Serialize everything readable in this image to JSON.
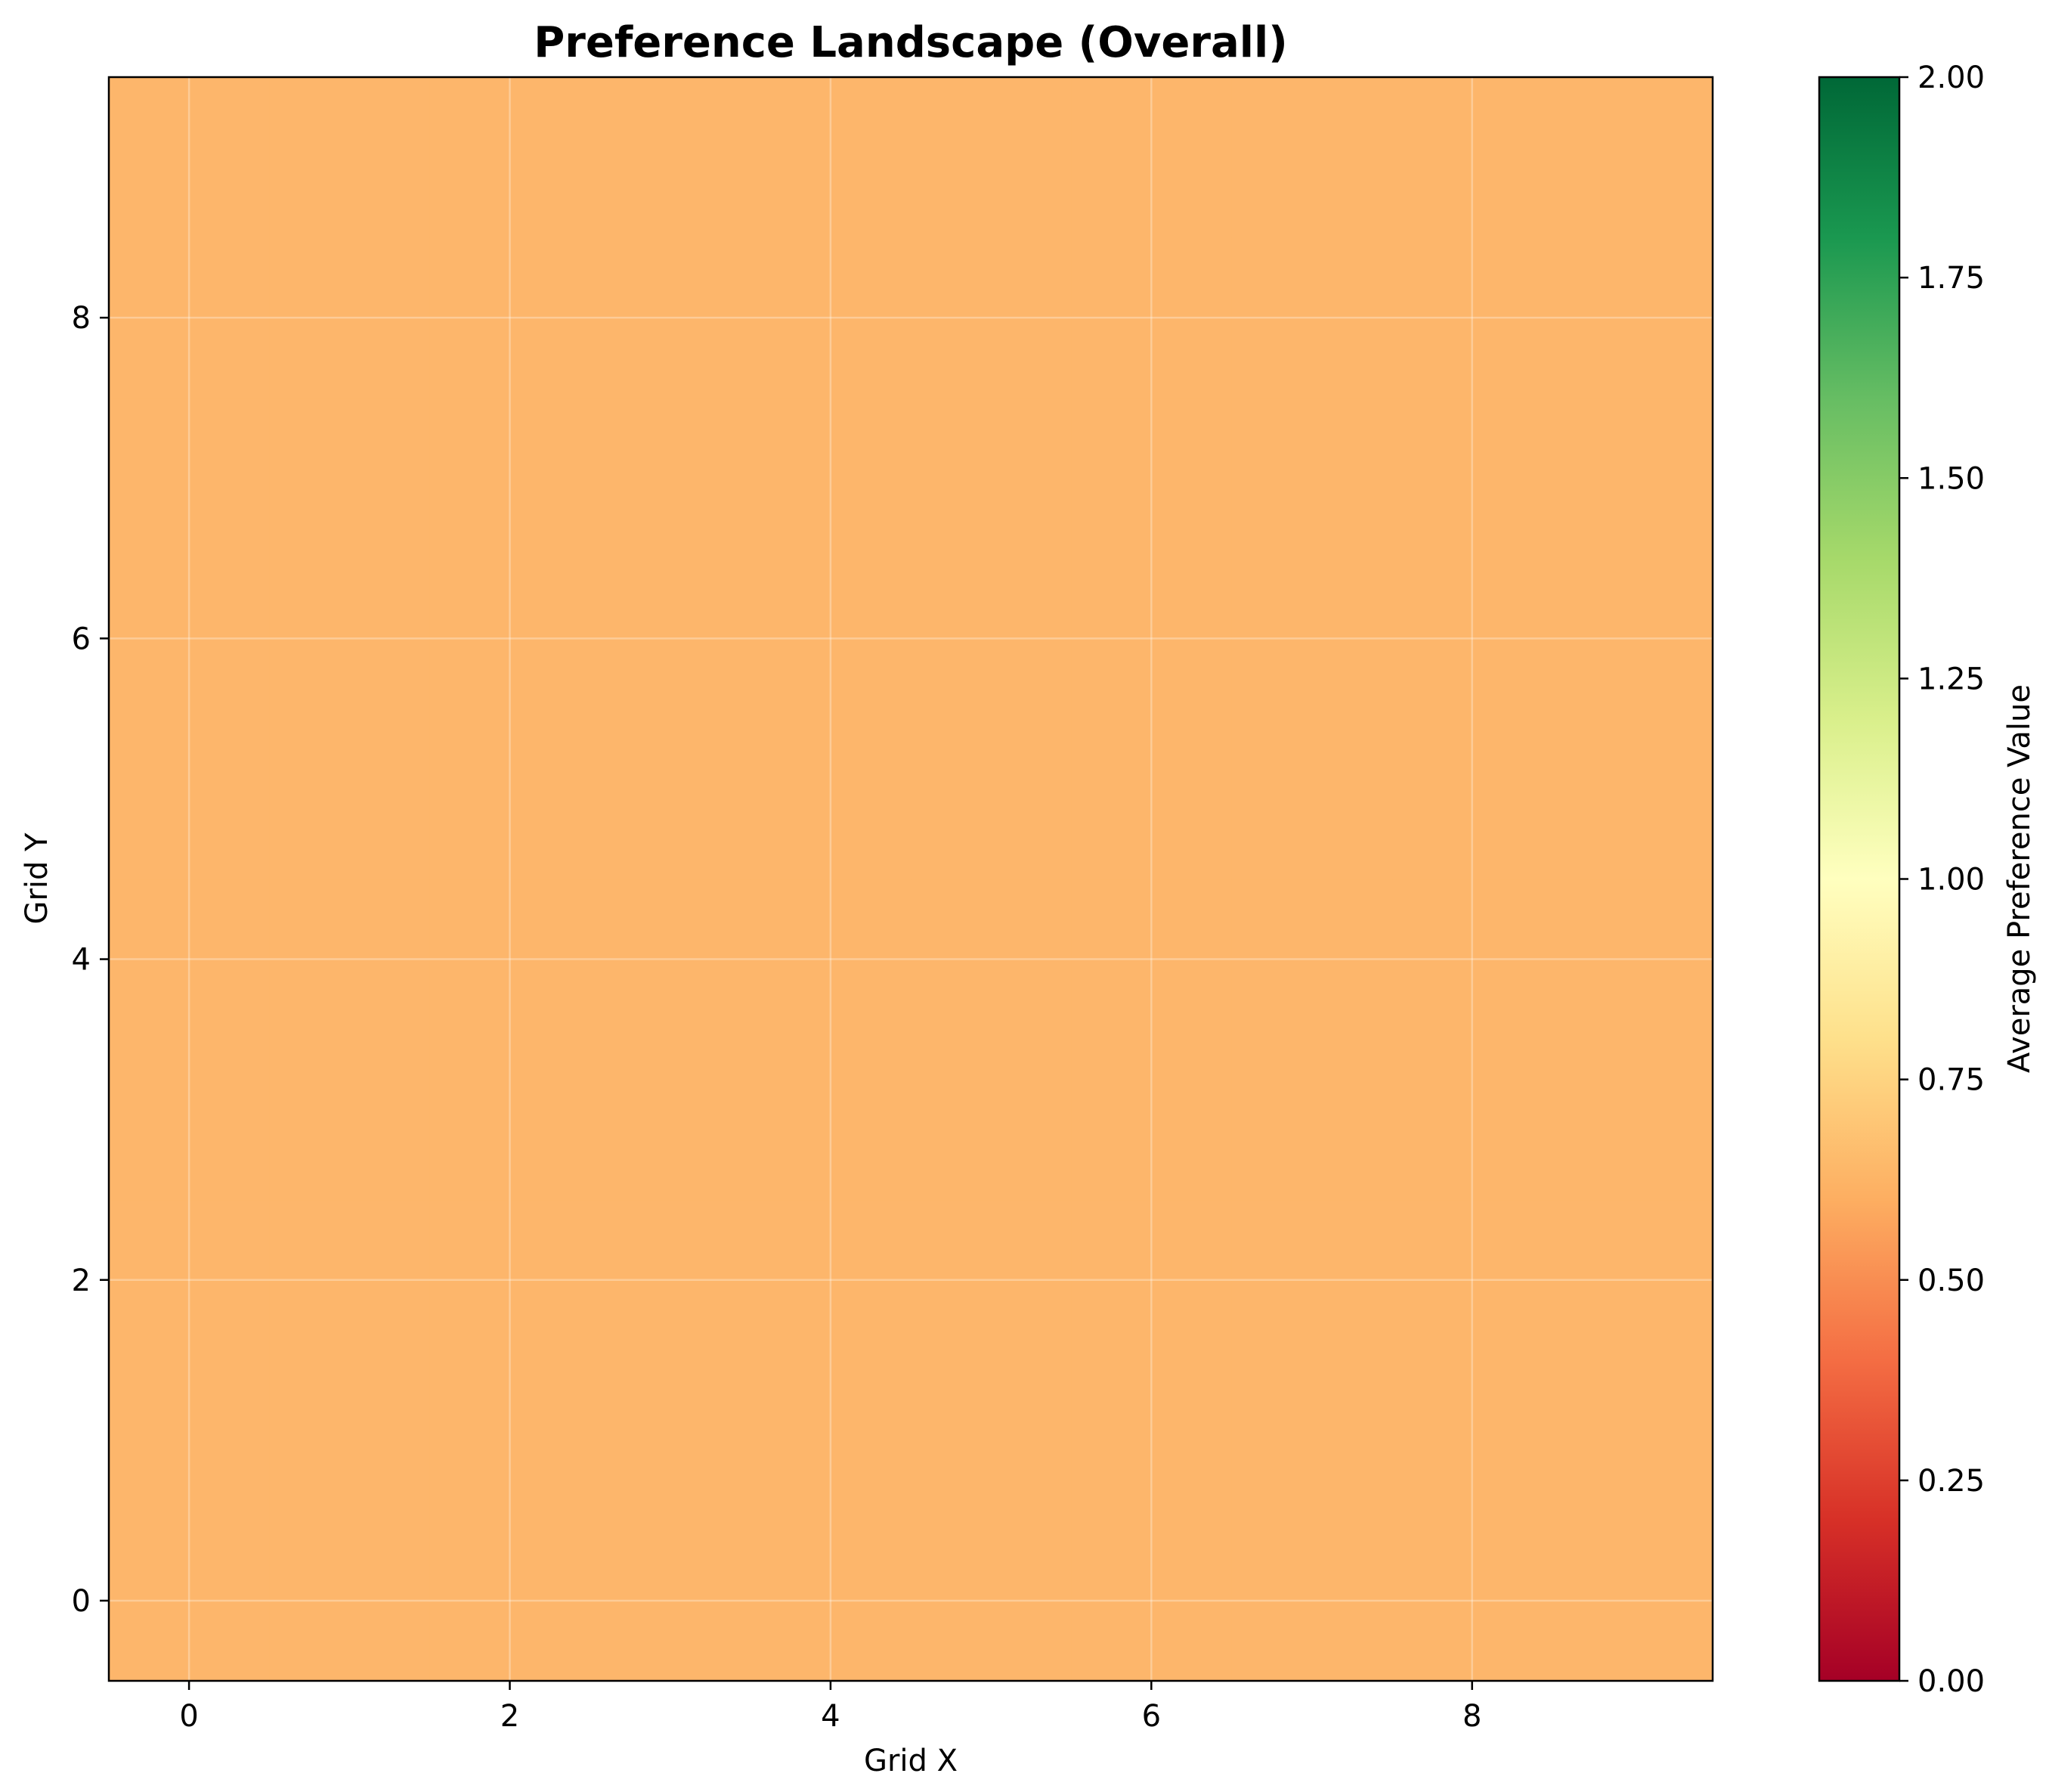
{
  "chart_data": {
    "type": "heatmap",
    "title": "Preference Landscape (Overall)",
    "xlabel": "Grid X",
    "ylabel": "Grid Y",
    "x": [
      0,
      1,
      2,
      3,
      4,
      5,
      6,
      7,
      8,
      9
    ],
    "y": [
      0,
      1,
      2,
      3,
      4,
      5,
      6,
      7,
      8,
      9
    ],
    "xlim": [
      -0.5,
      9.5
    ],
    "ylim": [
      -0.5,
      9.5
    ],
    "xticks": [
      0,
      2,
      4,
      6,
      8
    ],
    "yticks": [
      0,
      2,
      4,
      6,
      8
    ],
    "xtick_labels": [
      "0",
      "2",
      "4",
      "6",
      "8"
    ],
    "ytick_labels": [
      "0",
      "2",
      "4",
      "6",
      "8"
    ],
    "grid": true,
    "colormap": "RdYlGn",
    "vmin": 0.0,
    "vmax": 2.0,
    "fill_value": 0.67,
    "colorbar": {
      "label": "Average Preference Value",
      "ticks": [
        0.0,
        0.25,
        0.5,
        0.75,
        1.0,
        1.25,
        1.5,
        1.75,
        2.0
      ],
      "tick_labels": [
        "0.00",
        "0.25",
        "0.50",
        "0.75",
        "1.00",
        "1.25",
        "1.50",
        "1.75",
        "2.00"
      ]
    },
    "colors": {
      "cell": "#fdb66b",
      "colormap_stops": [
        "#a50026",
        "#d73027",
        "#f46d43",
        "#fdae61",
        "#fee08b",
        "#ffffbf",
        "#d9ef8b",
        "#a6d96a",
        "#66bd63",
        "#1a9850",
        "#006837"
      ]
    }
  }
}
